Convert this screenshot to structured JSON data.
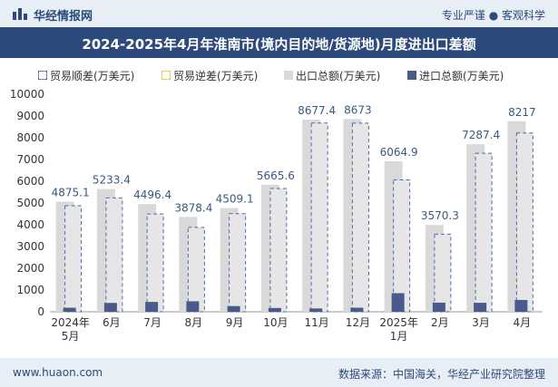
{
  "header": {
    "brand": "华经情报网",
    "tagline": "专业严谨 ● 客观科学"
  },
  "footer": {
    "url": "www.huaon.com",
    "source": "数据来源：中国海关，华经产业研究院整理"
  },
  "colors": {
    "topbar": "#e8eef5",
    "titlebar": "#2c4a7b",
    "surplus": "#4a6fa5",
    "deficit": "#f0c040",
    "export": "#d9d9d9",
    "import": "#4a5a8a",
    "label": "#3a5a80"
  },
  "chart_data": {
    "type": "bar",
    "title": "2024-2025年4月年淮南市(境内目的地/货源地)月度进出口差额",
    "legend": [
      "贸易顺差(万美元)",
      "贸易逆差(万美元)",
      "出口总额(万美元)",
      "进口总额(万美元)"
    ],
    "categories": [
      "2024年\n5月",
      "6月",
      "7月",
      "8月",
      "9月",
      "10月",
      "11月",
      "12月",
      "2025年\n1月",
      "2月",
      "3月",
      "4月"
    ],
    "series": [
      {
        "name": "出口总额(万美元)",
        "values": [
          5060,
          5640,
          4950,
          4360,
          4770,
          5840,
          8830,
          8860,
          6920,
          3990,
          7700,
          8760
        ]
      },
      {
        "name": "进口总额(万美元)",
        "values": [
          185,
          407,
          453,
          482,
          261,
          174,
          153,
          187,
          855,
          420,
          413,
          543
        ]
      },
      {
        "name": "贸易顺差(万美元)",
        "values": [
          4875.1,
          5233.4,
          4496.4,
          3878.4,
          4509.1,
          5665.6,
          8677.4,
          8673,
          6064.9,
          3570.3,
          7287.4,
          8217
        ]
      }
    ],
    "data_labels": [
      "4875.1",
      "5233.4",
      "4496.4",
      "3878.4",
      "4509.1",
      "5665.6",
      "8677.4",
      "8673",
      "6064.9",
      "3570.3",
      "7287.4",
      "8217"
    ],
    "y_ticks": [
      "0",
      "1000",
      "2000",
      "3000",
      "4000",
      "5000",
      "6000",
      "7000",
      "8000",
      "9000",
      "10000"
    ],
    "ylim": [
      0,
      10000
    ],
    "xlabel": "",
    "ylabel": ""
  }
}
